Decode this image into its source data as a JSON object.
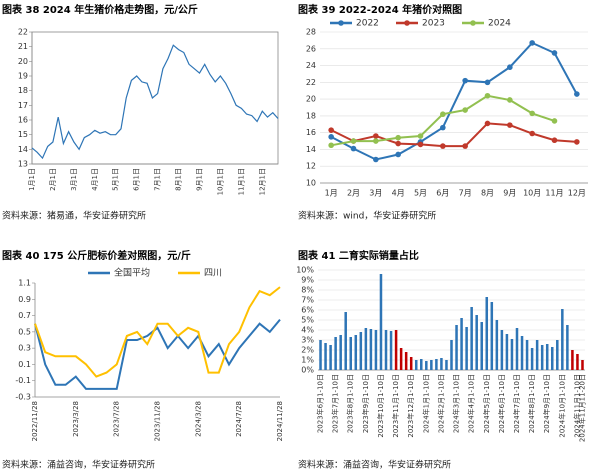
{
  "chart_data": [
    {
      "type": "line",
      "title": "图表 38 2024 年生猪价格走势图，元/公斤",
      "source": "资料来源：猪易通，华安证券研究所",
      "categories": [
        "1月1日",
        null,
        null,
        null,
        "2月1日",
        null,
        null,
        null,
        "3月1日",
        null,
        null,
        null,
        "4月1日",
        null,
        null,
        null,
        "5月1日",
        null,
        null,
        null,
        "6月1日",
        null,
        null,
        null,
        "7月1日",
        null,
        null,
        null,
        "8月1日",
        null,
        null,
        null,
        "9月1日",
        null,
        null,
        null,
        "10月1日",
        null,
        null,
        null,
        "11月1日",
        null,
        null,
        null,
        "12月1日",
        null,
        null,
        null
      ],
      "values": [
        14.1,
        13.8,
        13.4,
        14.2,
        14.5,
        16.2,
        14.4,
        15.2,
        14.5,
        14.0,
        14.8,
        15.0,
        15.3,
        15.1,
        15.2,
        15.0,
        15.0,
        15.4,
        17.5,
        18.7,
        19.0,
        18.6,
        18.5,
        17.5,
        17.8,
        19.5,
        20.2,
        21.1,
        20.8,
        20.6,
        19.8,
        19.5,
        19.2,
        19.8,
        19.1,
        18.6,
        19.0,
        18.5,
        17.8,
        17.0,
        16.8,
        16.4,
        16.3,
        15.9,
        16.6,
        16.2,
        16.5,
        16.1
      ],
      "color": "#2e75b6",
      "ylim": [
        13,
        22
      ],
      "yticks": [
        13,
        14,
        15,
        16,
        17,
        18,
        19,
        20,
        21,
        22
      ],
      "grid": false,
      "rotate_x": true
    },
    {
      "type": "line",
      "title": "图表 39 2022-2024 年猪价对照图",
      "source": "资料来源：wind，华安证券研究所",
      "categories": [
        "1月",
        "2月",
        "3月",
        "4月",
        "5月",
        "6月",
        "7月",
        "8月",
        "9月",
        "10月",
        "11月",
        "12月"
      ],
      "series": [
        {
          "name": "2022",
          "color": "#2e75b6",
          "values": [
            15.5,
            14.1,
            12.8,
            13.4,
            14.9,
            16.6,
            22.2,
            22.0,
            23.8,
            26.7,
            25.5,
            20.6
          ]
        },
        {
          "name": "2023",
          "color": "#c0392b",
          "values": [
            16.3,
            15.0,
            15.6,
            14.7,
            14.6,
            14.4,
            14.4,
            17.1,
            16.9,
            15.9,
            15.1,
            14.9
          ]
        },
        {
          "name": "2024",
          "color": "#92c050",
          "values": [
            14.5,
            15.0,
            15.0,
            15.4,
            15.6,
            18.2,
            18.7,
            20.4,
            19.9,
            18.3,
            17.4,
            null
          ]
        }
      ],
      "ylim": [
        10,
        28
      ],
      "yticks": [
        10,
        12,
        14,
        16,
        18,
        20,
        22,
        24,
        26,
        28
      ],
      "grid": true,
      "markers": true,
      "legend": "top",
      "rotate_x": false
    },
    {
      "type": "line",
      "title": "图表 40 175 公斤肥标价差对照图，元/斤",
      "source": "资料来源：涌益咨询，华安证券研究所",
      "categories": [
        "2022/11/28",
        null,
        null,
        null,
        "2023/3/28",
        null,
        null,
        null,
        "2023/7/28",
        null,
        null,
        null,
        "2023/11/28",
        null,
        null,
        null,
        "2024/3/28",
        null,
        null,
        null,
        "2024/7/28",
        null,
        null,
        null,
        "2024/11/28"
      ],
      "series": [
        {
          "name": "全国平均",
          "color": "#2e75b6",
          "values": [
            0.6,
            0.1,
            -0.15,
            -0.15,
            -0.05,
            -0.2,
            -0.2,
            -0.2,
            -0.2,
            0.4,
            0.4,
            0.45,
            0.55,
            0.3,
            0.45,
            0.3,
            0.45,
            0.2,
            0.35,
            0.1,
            0.3,
            0.45,
            0.6,
            0.5,
            0.65
          ]
        },
        {
          "name": "四川",
          "color": "#ffc000",
          "values": [
            0.6,
            0.25,
            0.2,
            0.2,
            0.2,
            0.1,
            -0.05,
            0.0,
            0.1,
            0.45,
            0.5,
            0.35,
            0.6,
            0.6,
            0.45,
            0.55,
            0.5,
            0.0,
            0.0,
            0.35,
            0.5,
            0.8,
            1.0,
            0.95,
            1.05
          ]
        }
      ],
      "ylim": [
        -0.3,
        1.1
      ],
      "yticks": [
        -0.3,
        -0.1,
        0.1,
        0.3,
        0.5,
        0.7,
        0.9,
        1.1
      ],
      "grid": false,
      "legend": "top",
      "rotate_x": true
    },
    {
      "type": "bar",
      "title": "图表 41 二育实际销量占比",
      "source": "资料来源：涌益咨询，华安证券研究所",
      "categories": [
        "2023年6月1-10日",
        null,
        null,
        "2023年7月1-10日",
        null,
        null,
        "2023年8月1-10日",
        null,
        null,
        "2023年9月1-10日",
        null,
        null,
        "2023年10月1-10日",
        null,
        null,
        "2023年11月1-10日",
        null,
        null,
        "2023年12月1-10日",
        null,
        null,
        "2024年1月1-10日",
        null,
        null,
        "2024年2月1-10日",
        null,
        null,
        "2024年3月1-10日",
        null,
        null,
        "2024年4月1-10日",
        null,
        null,
        "2024年5月1-10日",
        null,
        null,
        "2024年6月1-10日",
        null,
        null,
        "2024年7月1-10日",
        null,
        null,
        "2024年8月1-10日",
        null,
        null,
        "2024年9月1-10日",
        null,
        null,
        "2024年10月1-10日",
        null,
        null,
        "2024年11月1-10日",
        "2024年11月11-20日"
      ],
      "values": [
        3.0,
        2.7,
        2.5,
        3.3,
        3.5,
        5.8,
        3.3,
        3.5,
        3.8,
        4.2,
        4.1,
        4.0,
        9.6,
        4.0,
        3.9,
        4.0,
        2.2,
        1.8,
        1.3,
        1.0,
        1.1,
        0.9,
        1.0,
        1.1,
        1.2,
        1.0,
        3.0,
        4.5,
        5.2,
        4.3,
        6.3,
        5.5,
        4.8,
        7.3,
        6.8,
        5.0,
        4.0,
        3.6,
        3.1,
        4.2,
        3.4,
        3.0,
        2.2,
        3.0,
        2.5,
        2.6,
        2.3,
        3.0,
        6.1,
        4.5,
        2.0,
        1.6,
        1.0
      ],
      "colors": [
        "#2e75b6",
        "#2e75b6",
        "#2e75b6",
        "#2e75b6",
        "#2e75b6",
        "#2e75b6",
        "#2e75b6",
        "#2e75b6",
        "#2e75b6",
        "#2e75b6",
        "#2e75b6",
        "#2e75b6",
        "#2e75b6",
        "#2e75b6",
        "#2e75b6",
        "#c00000",
        "#c00000",
        "#c00000",
        "#c00000",
        "#2e75b6",
        "#2e75b6",
        "#2e75b6",
        "#2e75b6",
        "#2e75b6",
        "#2e75b6",
        "#2e75b6",
        "#2e75b6",
        "#2e75b6",
        "#2e75b6",
        "#2e75b6",
        "#2e75b6",
        "#2e75b6",
        "#2e75b6",
        "#2e75b6",
        "#2e75b6",
        "#2e75b6",
        "#2e75b6",
        "#2e75b6",
        "#2e75b6",
        "#2e75b6",
        "#2e75b6",
        "#2e75b6",
        "#2e75b6",
        "#2e75b6",
        "#2e75b6",
        "#2e75b6",
        "#2e75b6",
        "#2e75b6",
        "#2e75b6",
        "#2e75b6",
        "#c00000",
        "#c00000",
        "#c00000"
      ],
      "ylim": [
        0,
        10
      ],
      "yticks": [
        {
          "value": 0,
          "label": "0%"
        },
        {
          "value": 1,
          "label": "1%"
        },
        {
          "value": 2,
          "label": "2%"
        },
        {
          "value": 3,
          "label": "3%"
        },
        {
          "value": 4,
          "label": "4%"
        },
        {
          "value": 5,
          "label": "5%"
        },
        {
          "value": 6,
          "label": "6%"
        },
        {
          "value": 7,
          "label": "7%"
        },
        {
          "value": 8,
          "label": "8%"
        },
        {
          "value": 9,
          "label": "9%"
        },
        {
          "value": 10,
          "label": "10%"
        }
      ],
      "grid": true,
      "rotate_x": true
    }
  ]
}
